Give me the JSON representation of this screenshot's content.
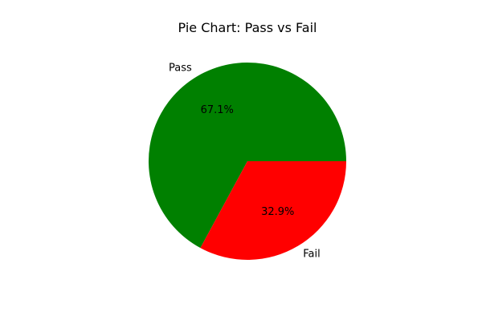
{
  "chart_data": {
    "type": "pie",
    "title": "Pie Chart: Pass vs Fail",
    "slices": [
      {
        "label": "Pass",
        "value": 67.1,
        "pct_label": "67.1%",
        "color": "#008000"
      },
      {
        "label": "Fail",
        "value": 32.9,
        "pct_label": "32.9%",
        "color": "#ff0000"
      }
    ],
    "start_angle": 0,
    "direction": "counterclockwise"
  }
}
